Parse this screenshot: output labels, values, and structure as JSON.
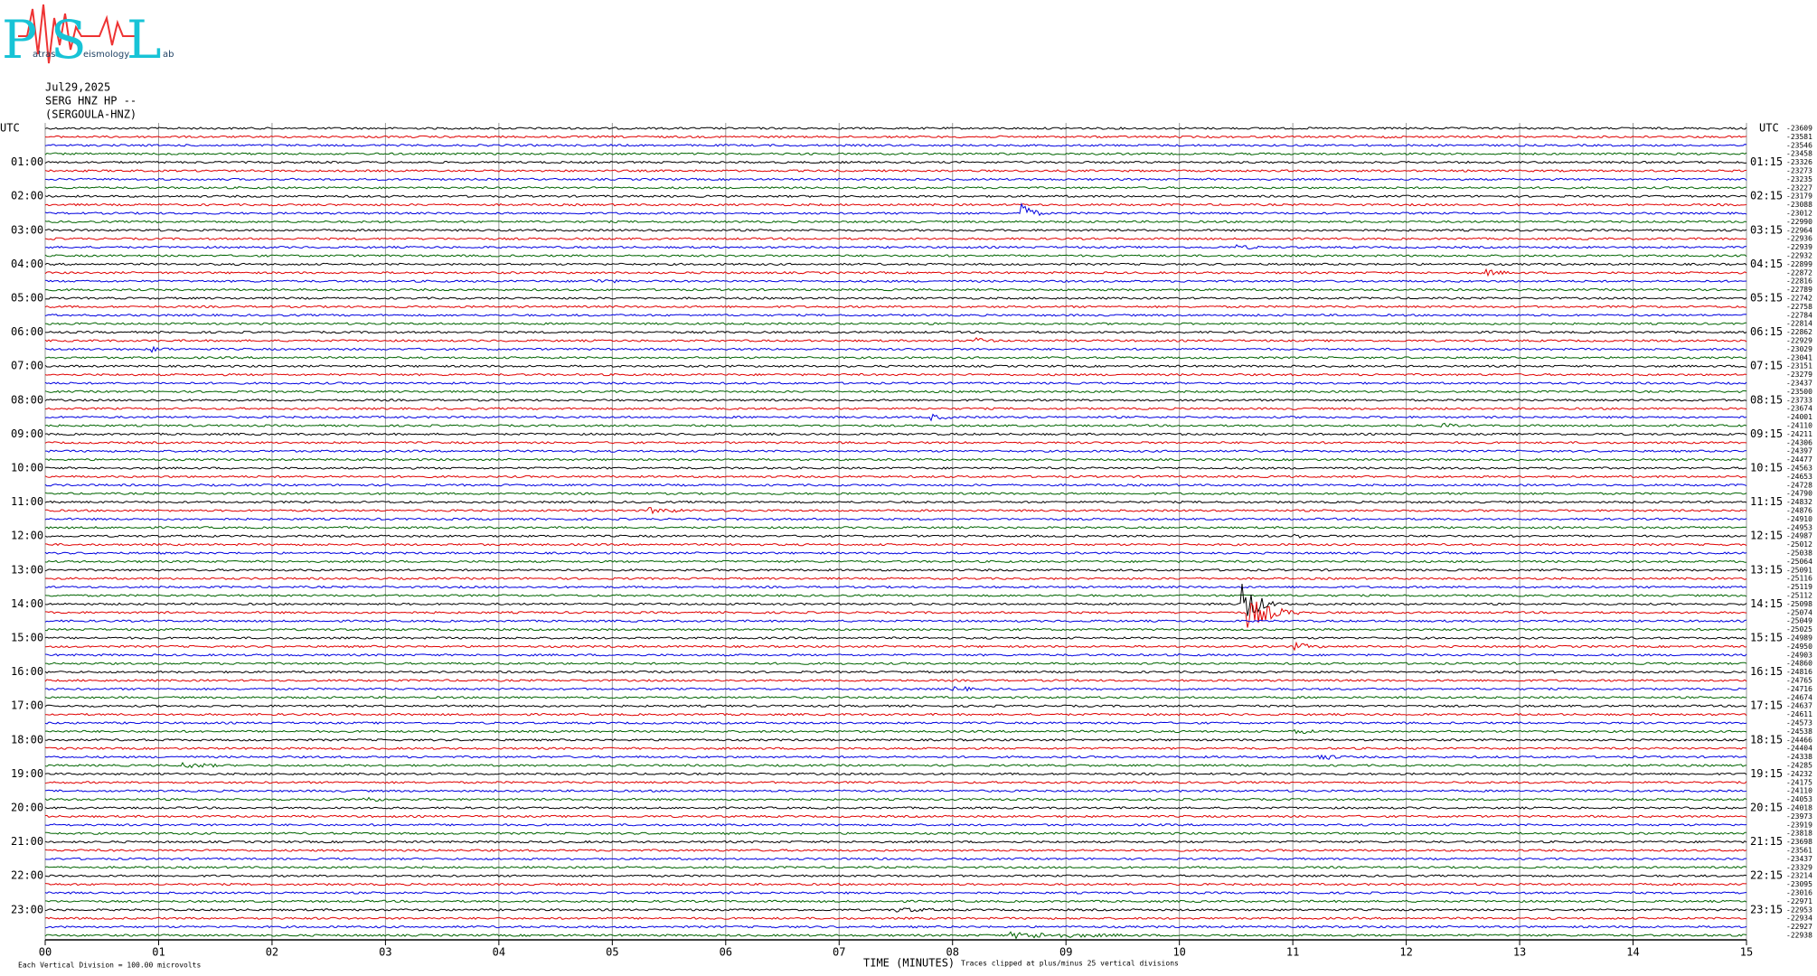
{
  "logo": {
    "letters": [
      "P",
      "S",
      "L"
    ],
    "words": [
      "atras",
      "eismology",
      "ab"
    ]
  },
  "header": {
    "date": "Jul29,2025",
    "station": "SERG HNZ HP --",
    "site": "(SERGOULA-HNZ)"
  },
  "left_axis": {
    "title": "UTC",
    "labels": [
      "01:00",
      "02:00",
      "03:00",
      "04:00",
      "05:00",
      "06:00",
      "07:00",
      "08:00",
      "09:00",
      "10:00",
      "11:00",
      "12:00",
      "13:00",
      "14:00",
      "15:00",
      "16:00",
      "17:00",
      "18:00",
      "19:00",
      "20:00",
      "21:00",
      "22:00",
      "23:00"
    ]
  },
  "right_axis": {
    "title": "UTC",
    "labels": [
      "01:15",
      "02:15",
      "03:15",
      "04:15",
      "05:15",
      "06:15",
      "07:15",
      "08:15",
      "09:15",
      "10:15",
      "11:15",
      "12:15",
      "13:15",
      "14:15",
      "15:15",
      "16:15",
      "17:15",
      "18:15",
      "19:15",
      "20:15",
      "21:15",
      "22:15",
      "23:15"
    ]
  },
  "offsets": [
    -23609,
    -23581,
    -23546,
    -23458,
    -23326,
    -23273,
    -23235,
    -23227,
    -23179,
    -23088,
    -23012,
    -22990,
    -22964,
    -22936,
    -22939,
    -22932,
    -22899,
    -22872,
    -22816,
    -22789,
    -22742,
    -22758,
    -22784,
    -22814,
    -22862,
    -22929,
    -23029,
    -23041,
    -23151,
    -23279,
    -23437,
    -23500,
    -23733,
    -23674,
    -24001,
    -24110,
    -24211,
    -24306,
    -24397,
    -24477,
    -24563,
    -24653,
    -24728,
    -24790,
    -24832,
    -24876,
    -24910,
    -24953,
    -24987,
    -25012,
    -25038,
    -25064,
    -25091,
    -25116,
    -25119,
    -25112,
    -25098,
    -25074,
    -25049,
    -25025,
    -24989,
    -24950,
    -24903,
    -24860,
    -24816,
    -24765,
    -24716,
    -24674,
    -24637,
    -24611,
    -24573,
    -24538,
    -24466,
    -24404,
    -24338,
    -24285,
    -24232,
    -24175,
    -24110,
    -24053,
    -24018,
    -23973,
    -23919,
    -23818,
    -23698,
    -23561,
    -23437,
    -23329,
    -23214,
    -23095,
    -23016,
    -22971,
    -22953,
    -22934,
    -22927,
    -22938
  ],
  "x_axis": {
    "title": "TIME (MINUTES)",
    "ticks": [
      "00",
      "01",
      "02",
      "03",
      "04",
      "05",
      "06",
      "07",
      "08",
      "09",
      "10",
      "11",
      "12",
      "13",
      "14",
      "15"
    ]
  },
  "footer": {
    "scale_note": "Each Vertical Division =  100.00 microvolts",
    "clip_note": "Traces clipped at plus/minus 25 vertical divisions"
  }
}
